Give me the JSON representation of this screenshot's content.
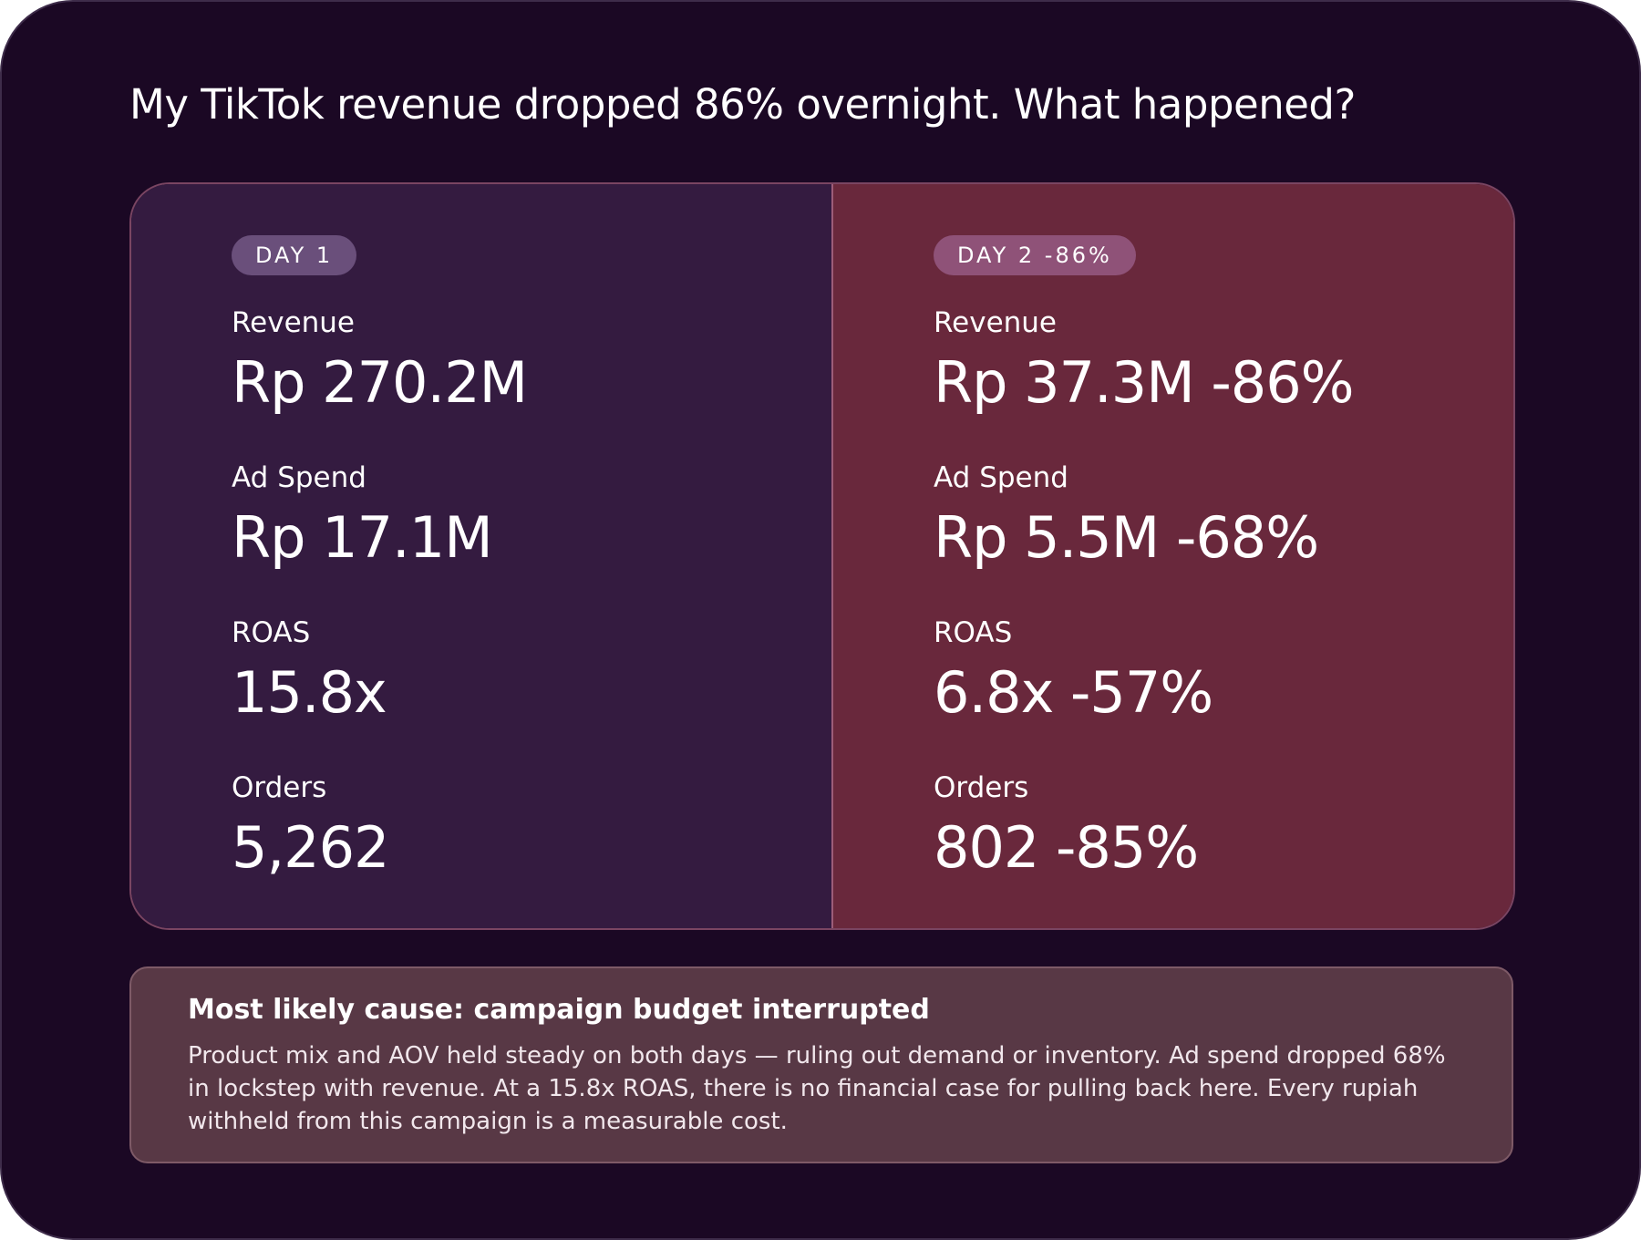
{
  "header": {
    "title": "My TikTok revenue dropped 86% overnight. What happened?"
  },
  "comparison": {
    "day1": {
      "badge": "DAY 1",
      "metrics": [
        {
          "label": "Revenue",
          "value": "Rp 270.2M"
        },
        {
          "label": "Ad Spend",
          "value": "Rp 17.1M"
        },
        {
          "label": "ROAS",
          "value": "15.8x"
        },
        {
          "label": "Orders",
          "value": "5,262"
        }
      ]
    },
    "day2": {
      "badge": "DAY 2 -86%",
      "metrics": [
        {
          "label": "Revenue",
          "value": "Rp 37.3M -86%"
        },
        {
          "label": "Ad Spend",
          "value": "Rp 5.5M -68%"
        },
        {
          "label": "ROAS",
          "value": "6.8x -57%"
        },
        {
          "label": "Orders",
          "value": "802 -85%"
        }
      ]
    }
  },
  "cause": {
    "title": "Most likely cause: campaign budget interrupted",
    "body": "Product mix and AOV held steady on both days — ruling out demand or inventory. Ad spend dropped 68% in lockstep with revenue. At a 15.8x ROAS, there is no financial case for pulling back here. Every rupiah withheld from this campaign is a measurable cost."
  },
  "colors": {
    "background": "#1b0824",
    "day1_panel": "#341b40",
    "day2_panel": "#69283c",
    "cause_panel": "#583845",
    "text": "#ffffff"
  }
}
